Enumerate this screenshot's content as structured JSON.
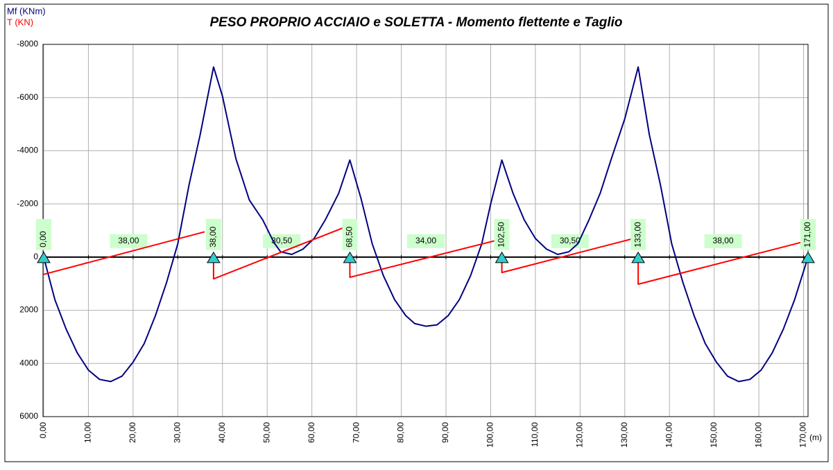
{
  "chart_data": {
    "type": "line",
    "title": "PESO PROPRIO ACCIAIO e SOLETTA - Momento flettente e Taglio",
    "x_label": "(m)",
    "xlim": [
      0,
      171
    ],
    "xticks": [
      {
        "value": 0,
        "label": "0,00"
      },
      {
        "value": 10,
        "label": "10,00"
      },
      {
        "value": 20,
        "label": "20,00"
      },
      {
        "value": 30,
        "label": "30,00"
      },
      {
        "value": 40,
        "label": "40,00"
      },
      {
        "value": 50,
        "label": "50,00"
      },
      {
        "value": 60,
        "label": "60,00"
      },
      {
        "value": 70,
        "label": "70,00"
      },
      {
        "value": 80,
        "label": "80,00"
      },
      {
        "value": 90,
        "label": "90,00"
      },
      {
        "value": 100,
        "label": "100,00"
      },
      {
        "value": 110,
        "label": "110,00"
      },
      {
        "value": 120,
        "label": "120,00"
      },
      {
        "value": 130,
        "label": "130,00"
      },
      {
        "value": 140,
        "label": "140,00"
      },
      {
        "value": 150,
        "label": "150,00"
      },
      {
        "value": 160,
        "label": "160,00"
      },
      {
        "value": 170,
        "label": "170,00"
      }
    ],
    "ylim": [
      -8000,
      6000
    ],
    "yticks": [
      -8000,
      -6000,
      -4000,
      -2000,
      0,
      2000,
      4000,
      6000
    ],
    "grid": true,
    "supports": [
      {
        "value": 0,
        "label": "0,00"
      },
      {
        "value": 38,
        "label": "38,00"
      },
      {
        "value": 68.5,
        "label": "68,50"
      },
      {
        "value": 102.5,
        "label": "102,50"
      },
      {
        "value": 133,
        "label": "133,00"
      },
      {
        "value": 171,
        "label": "171,00"
      }
    ],
    "spans": [
      {
        "value": 38,
        "label": "38,00"
      },
      {
        "value": 30.5,
        "label": "30,50"
      },
      {
        "value": 34,
        "label": "34,00"
      },
      {
        "value": 30.5,
        "label": "30,50"
      },
      {
        "value": 38,
        "label": "38,00"
      }
    ],
    "series": [
      {
        "name": "Mf (KNm)",
        "color": "#000080",
        "x": [
          0,
          2.5,
          5,
          7.5,
          10,
          12.5,
          15,
          17.5,
          20,
          22.5,
          25,
          27.5,
          30,
          32.5,
          35,
          38,
          40,
          43,
          46,
          49,
          51.5,
          53,
          55.5,
          58,
          60.5,
          63,
          66,
          68.5,
          71,
          73.5,
          76,
          78.5,
          81,
          83,
          85.5,
          88,
          90.5,
          93,
          95.5,
          98,
          100,
          102.5,
          105,
          107.5,
          110,
          112.5,
          115,
          117.5,
          119.5,
          122,
          124.5,
          127,
          130,
          133,
          135.5,
          138,
          140.5,
          143,
          145.5,
          148,
          150.5,
          153,
          155.5,
          158,
          160.5,
          163,
          165.5,
          168,
          171
        ],
        "values": [
          0,
          1600,
          2700,
          3600,
          4250,
          4600,
          4680,
          4480,
          3950,
          3250,
          2200,
          950,
          -500,
          -2700,
          -4600,
          -7150,
          -6050,
          -3700,
          -2150,
          -1400,
          -550,
          -200,
          -100,
          -300,
          -700,
          -1400,
          -2400,
          -3650,
          -2200,
          -500,
          700,
          1600,
          2200,
          2500,
          2600,
          2550,
          2200,
          1600,
          700,
          -500,
          -2000,
          -3650,
          -2400,
          -1400,
          -700,
          -300,
          -100,
          -200,
          -500,
          -1400,
          -2400,
          -3700,
          -5200,
          -7150,
          -4600,
          -2700,
          -500,
          950,
          2200,
          3250,
          3950,
          4480,
          4680,
          4600,
          4250,
          3600,
          2700,
          1600,
          0
        ]
      },
      {
        "name": "T (KN)",
        "color": "#ff0000",
        "x": [
          0,
          36,
          null,
          38,
          38,
          67,
          null,
          68.5,
          68.5,
          102,
          null,
          102.5,
          102.5,
          132,
          null,
          133,
          133,
          171
        ],
        "values": [
          650,
          -950,
          null,
          0,
          820,
          -1100,
          null,
          0,
          760,
          -660,
          null,
          0,
          580,
          -700,
          null,
          0,
          1020,
          -620
        ]
      }
    ]
  }
}
